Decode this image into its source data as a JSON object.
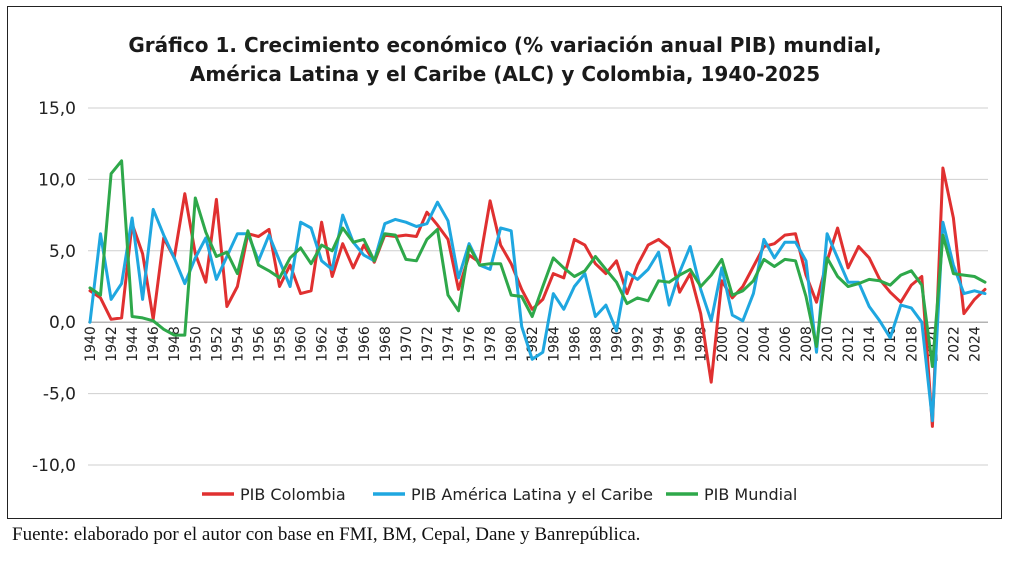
{
  "chart_data": {
    "type": "line",
    "title_line1": "Gráfico 1. Crecimiento económico  (% variación anual PIB) mundial,",
    "title_line2": "América Latina y el Caribe (ALC) y Colombia, 1940-2025",
    "xlabel": "",
    "ylabel": "",
    "ylim": [
      -10,
      15
    ],
    "y_ticks": [
      "15,0",
      "10,0",
      "5,0",
      "0,0",
      "-5,0",
      "-10,0"
    ],
    "y_tick_values": [
      15,
      10,
      5,
      0,
      -5,
      -10
    ],
    "x_tick_labels": [
      "1940",
      "1942",
      "1944",
      "1946",
      "1948",
      "1950",
      "1952",
      "1954",
      "1956",
      "1958",
      "1960",
      "1962",
      "1964",
      "1966",
      "1968",
      "1970",
      "1972",
      "1974",
      "1976",
      "1978",
      "1980",
      "1982",
      "1984",
      "1986",
      "1988",
      "1990",
      "1992",
      "1994",
      "1996",
      "1998",
      "2000",
      "2002",
      "2004",
      "2006",
      "2008",
      "2010",
      "2012",
      "2014",
      "2016",
      "2018",
      "2020",
      "2022",
      "2024"
    ],
    "grid": true,
    "legend_position": "bottom",
    "x": [
      1940,
      1941,
      1942,
      1943,
      1944,
      1945,
      1946,
      1947,
      1948,
      1949,
      1950,
      1951,
      1952,
      1953,
      1954,
      1955,
      1956,
      1957,
      1958,
      1959,
      1960,
      1961,
      1962,
      1963,
      1964,
      1965,
      1966,
      1967,
      1968,
      1969,
      1970,
      1971,
      1972,
      1973,
      1974,
      1975,
      1976,
      1977,
      1978,
      1979,
      1980,
      1981,
      1982,
      1983,
      1984,
      1985,
      1986,
      1987,
      1988,
      1989,
      1990,
      1991,
      1992,
      1993,
      1994,
      1995,
      1996,
      1997,
      1998,
      1999,
      2000,
      2001,
      2002,
      2003,
      2004,
      2005,
      2006,
      2007,
      2008,
      2009,
      2010,
      2011,
      2012,
      2013,
      2014,
      2015,
      2016,
      2017,
      2018,
      2019,
      2020,
      2021,
      2022,
      2023,
      2024,
      2025
    ],
    "series": [
      {
        "name": "PIB Colombia",
        "color": "#e03030",
        "values": [
          2.2,
          1.7,
          0.2,
          0.3,
          6.9,
          4.8,
          0.2,
          5.9,
          4.5,
          9.0,
          4.8,
          2.8,
          8.6,
          1.1,
          2.5,
          6.2,
          6.0,
          6.5,
          2.5,
          4.0,
          2.0,
          2.2,
          7.0,
          3.2,
          5.5,
          3.8,
          5.4,
          4.2,
          6.1,
          6.0,
          6.1,
          6.0,
          7.7,
          6.8,
          5.8,
          2.3,
          4.7,
          4.2,
          8.5,
          5.4,
          4.1,
          2.3,
          0.9,
          1.6,
          3.4,
          3.1,
          5.8,
          5.4,
          4.1,
          3.4,
          4.3,
          2.0,
          4.0,
          5.4,
          5.8,
          5.2,
          2.1,
          3.4,
          0.6,
          -4.2,
          2.9,
          1.7,
          2.5,
          3.9,
          5.3,
          5.5,
          6.1,
          6.2,
          3.3,
          1.4,
          4.3,
          6.6,
          3.8,
          5.3,
          4.5,
          3.0,
          2.1,
          1.4,
          2.6,
          3.2,
          -7.3,
          10.8,
          7.3,
          0.6,
          1.6,
          2.3
        ]
      },
      {
        "name": "PIB América Latina y el Caribe",
        "color": "#1fa7e0",
        "values": [
          0.0,
          6.2,
          1.6,
          2.7,
          7.3,
          1.6,
          7.9,
          6.1,
          4.5,
          2.7,
          4.5,
          5.9,
          3.0,
          4.6,
          6.2,
          6.2,
          4.3,
          6.1,
          4.3,
          2.5,
          7.0,
          6.6,
          4.3,
          3.7,
          7.5,
          5.6,
          4.7,
          4.3,
          6.9,
          7.2,
          7.0,
          6.7,
          6.9,
          8.4,
          7.1,
          3.1,
          5.5,
          4.0,
          3.7,
          6.6,
          6.4,
          -0.3,
          -2.6,
          -2.1,
          2.0,
          0.9,
          2.5,
          3.4,
          0.4,
          1.2,
          -0.6,
          3.5,
          3.0,
          3.7,
          4.9,
          1.2,
          3.5,
          5.3,
          2.3,
          0.1,
          3.8,
          0.5,
          0.1,
          2.0,
          5.8,
          4.5,
          5.6,
          5.6,
          4.3,
          -2.1,
          6.2,
          4.5,
          2.8,
          2.8,
          1.1,
          0.1,
          -1.1,
          1.2,
          1.0,
          0.0,
          -6.9,
          7.0,
          4.0,
          2.0,
          2.2,
          2.0
        ]
      },
      {
        "name": "PIB Mundial",
        "color": "#2ea84a",
        "values": [
          2.4,
          1.9,
          10.4,
          11.3,
          0.4,
          0.3,
          0.1,
          -0.5,
          -0.9,
          -0.9,
          8.7,
          6.3,
          4.6,
          4.9,
          3.4,
          6.4,
          4.0,
          3.6,
          3.1,
          4.5,
          5.2,
          4.1,
          5.4,
          5.0,
          6.6,
          5.6,
          5.8,
          4.3,
          6.2,
          6.1,
          4.4,
          4.3,
          5.8,
          6.5,
          1.9,
          0.8,
          5.3,
          4.0,
          4.1,
          4.1,
          1.9,
          1.8,
          0.4,
          2.5,
          4.5,
          3.8,
          3.2,
          3.6,
          4.6,
          3.7,
          2.8,
          1.3,
          1.7,
          1.5,
          2.9,
          2.8,
          3.3,
          3.7,
          2.5,
          3.3,
          4.4,
          1.9,
          2.2,
          2.9,
          4.4,
          3.9,
          4.4,
          4.3,
          1.8,
          -1.7,
          4.5,
          3.2,
          2.5,
          2.7,
          3.0,
          2.9,
          2.6,
          3.3,
          3.6,
          2.6,
          -3.1,
          6.1,
          3.4,
          3.3,
          3.2,
          2.8
        ]
      }
    ]
  },
  "source_text": "Fuente: elaborado por el autor con base en FMI, BM, Cepal, Dane y Banrepública."
}
